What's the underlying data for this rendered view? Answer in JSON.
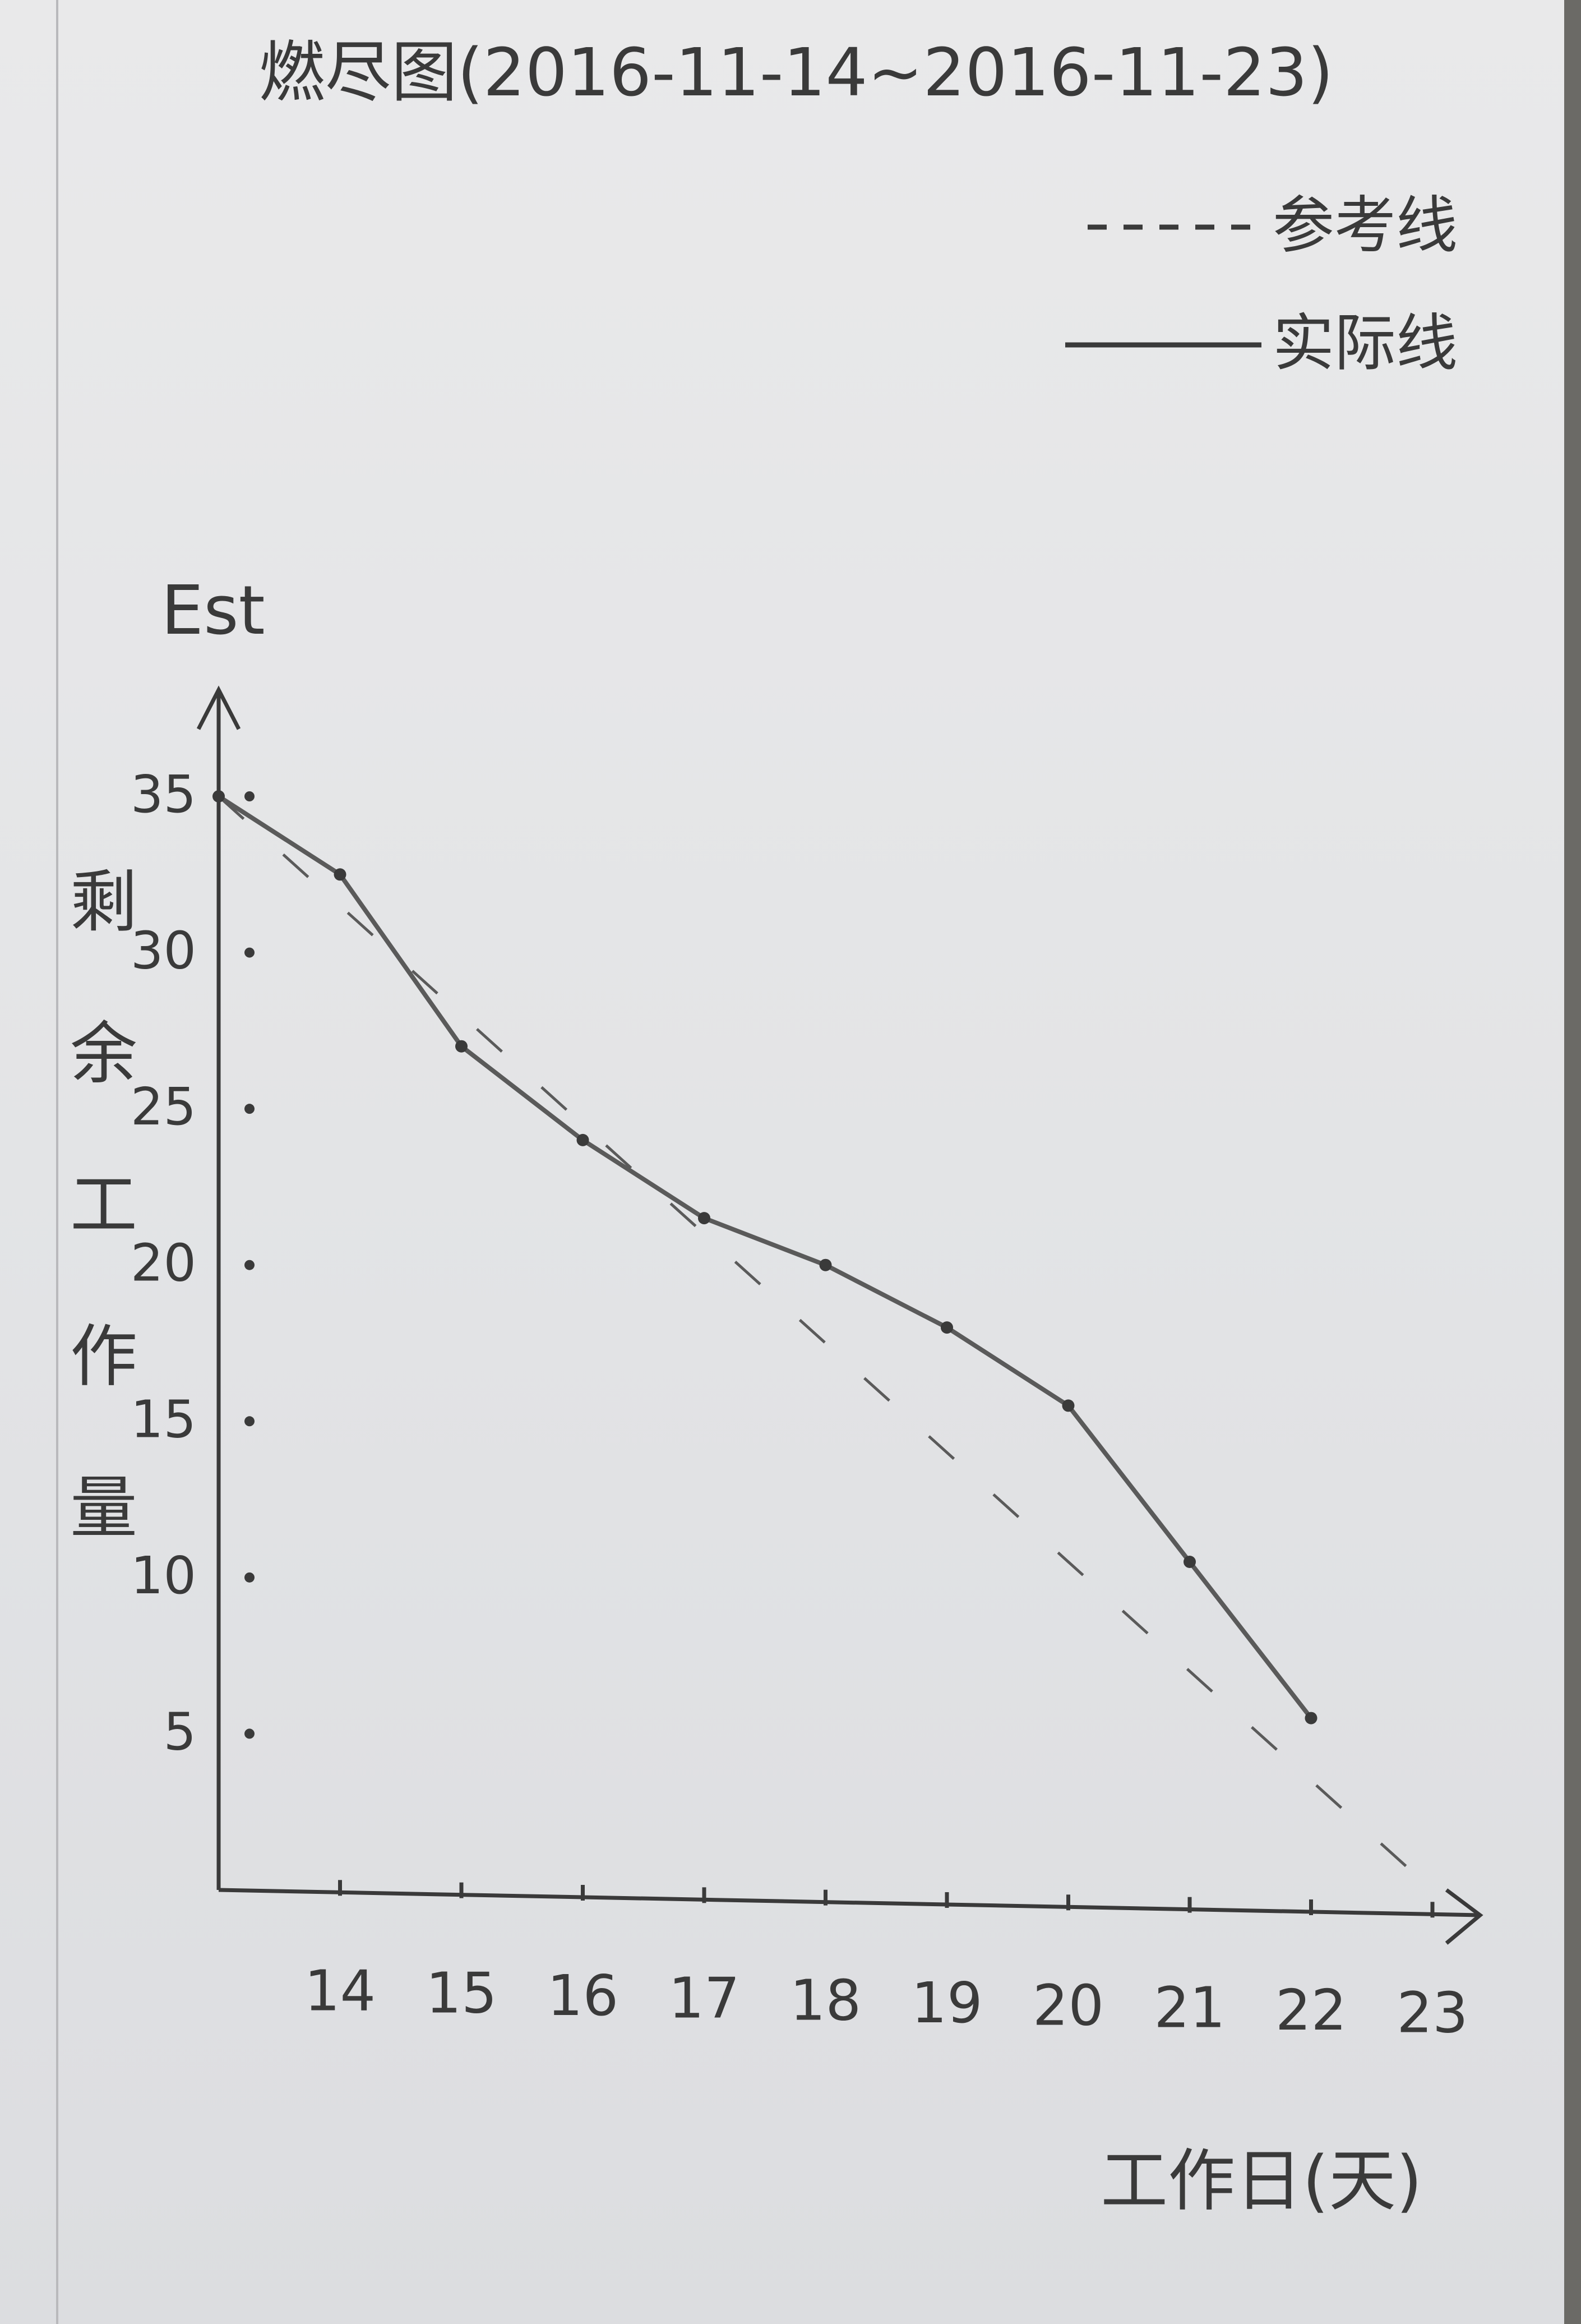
{
  "chart_data": {
    "type": "line",
    "title": "燃尽图(2016-11-14~2016-11-23)",
    "ylabel_top": "Est",
    "ylabel_side": "剩余工作量",
    "xlabel": "工作日(天)",
    "x_ticks": [
      14,
      15,
      16,
      17,
      18,
      19,
      20,
      21,
      22,
      23
    ],
    "y_ticks": [
      5,
      10,
      15,
      20,
      25,
      30,
      35
    ],
    "xlim": [
      13,
      23.7
    ],
    "ylim": [
      0,
      38
    ],
    "legend": {
      "position": "top-right",
      "entries": [
        {
          "name": "参考线",
          "style": "dashed"
        },
        {
          "name": "实际线",
          "style": "solid"
        }
      ]
    },
    "series": [
      {
        "name": "参考线",
        "style": "dashed",
        "points": [
          [
            13,
            35
          ],
          [
            23,
            0
          ]
        ]
      },
      {
        "name": "实际线",
        "style": "solid",
        "points": [
          [
            13,
            35
          ],
          [
            14,
            32.5
          ],
          [
            15,
            27
          ],
          [
            16,
            24
          ],
          [
            17,
            21.5
          ],
          [
            18,
            20
          ],
          [
            19,
            18
          ],
          [
            20,
            15.5
          ],
          [
            21,
            10.5
          ],
          [
            22,
            5.5
          ]
        ]
      }
    ],
    "colors": {
      "ink": "#3a3a3a",
      "pencil": "#5a5a5a"
    }
  }
}
